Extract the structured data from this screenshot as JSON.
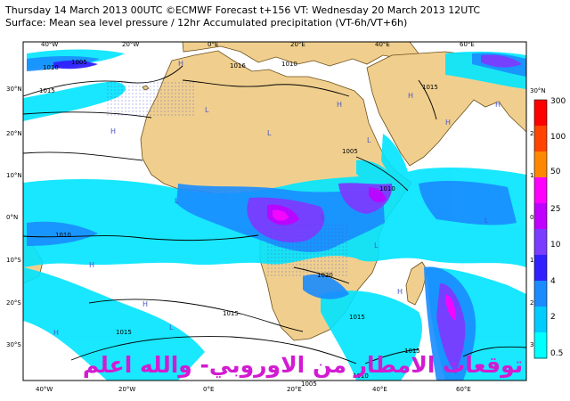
{
  "header": {
    "line1": "Thursday 14 March 2013 00UTC ©ECMWF Forecast t+156 VT: Wednesday 20 March 2013 12UTC",
    "line2": "Surface: Mean sea level pressure / 12hr Accumulated precipitation (VT-6h/VT+6h)"
  },
  "map": {
    "lon_labels": [
      "40°W",
      "20°W",
      "0°E",
      "20°E",
      "40°E",
      "60°E"
    ],
    "lat_labels_left": [
      "30°N",
      "20°N",
      "10°N",
      "0°N",
      "10°S",
      "20°S",
      "30°S"
    ],
    "lat_labels_right": [
      "30°N",
      "20°N",
      "10°N",
      "0°N",
      "10°S",
      "20°S",
      "30°S"
    ],
    "isobar_labels": [
      "1010",
      "1005",
      "1015",
      "1016",
      "1010",
      "1015",
      "1005",
      "1010",
      "1010",
      "1015",
      "1020",
      "1015",
      "1015",
      "1015",
      "1010",
      "1005"
    ],
    "pressure_centers": [
      "H",
      "H",
      "L",
      "L",
      "H",
      "L",
      "H",
      "H",
      "L",
      "L",
      "L",
      "H",
      "H",
      "L",
      "H",
      "H",
      "L",
      "H"
    ],
    "overlay_text": "توقعات الامطار من الاوروبي- والله اعلم",
    "colors": {
      "ocean": "#ffffff",
      "land": "#f0cf8e",
      "outline": "#6b4f1c",
      "isobar": "#000000",
      "overlay": "#d21bd2"
    }
  },
  "colorbar": {
    "labels": [
      "300",
      "100",
      "50",
      "25",
      "10",
      "4",
      "2",
      "0.5"
    ],
    "colors": [
      "#ff0000",
      "#ff4400",
      "#ff8800",
      "#ff00ff",
      "#c000ff",
      "#7a3cff",
      "#3020ff",
      "#1a8cff",
      "#00ccff",
      "#00ffff"
    ]
  }
}
